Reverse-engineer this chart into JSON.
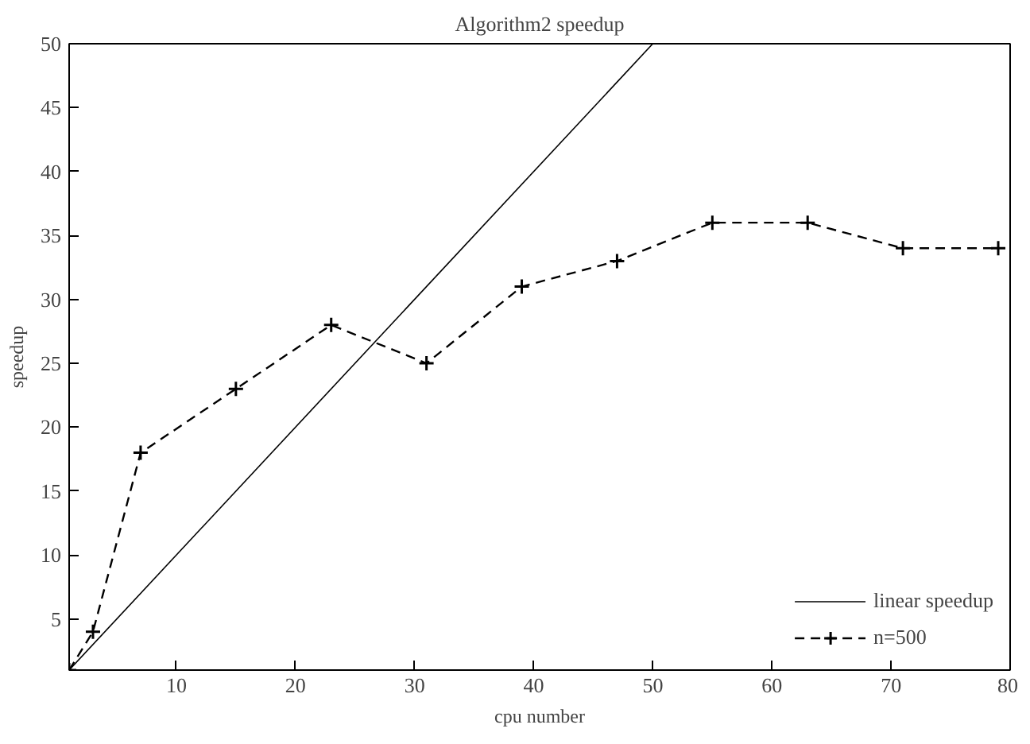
{
  "chart_data": {
    "type": "line",
    "title": "Algorithm2 speedup",
    "xlabel": "cpu number",
    "ylabel": "speedup",
    "xlim": [
      1,
      80
    ],
    "ylim": [
      1,
      50
    ],
    "xticks": [
      10,
      20,
      30,
      40,
      50,
      60,
      70,
      80
    ],
    "yticks": [
      5,
      10,
      15,
      20,
      25,
      30,
      35,
      40,
      45,
      50
    ],
    "grid": false,
    "legend": "bottom right",
    "series": [
      {
        "name": "linear speedup",
        "color": "#000000",
        "x": [
          1,
          50
        ],
        "values": [
          1,
          50
        ],
        "line_style": "solid"
      },
      {
        "name": "n=500",
        "color": "#000000",
        "x": [
          1,
          3,
          7,
          15,
          23,
          31,
          39,
          47,
          55,
          63,
          71,
          79
        ],
        "values": [
          1,
          4,
          18,
          23,
          28,
          25,
          31,
          33,
          36,
          36,
          34,
          34
        ],
        "line_style": "dashed",
        "marker": "cross"
      }
    ]
  }
}
